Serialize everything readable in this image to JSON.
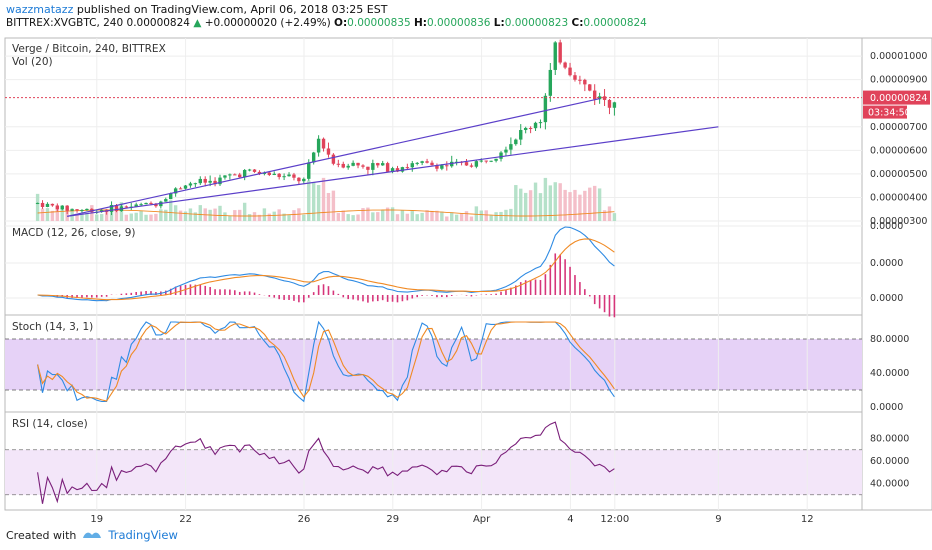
{
  "header": {
    "author": "wazzmatazz",
    "published_text": "published on TradingView.com, April 06, 2018 03:25 EST",
    "symbol": "BITTREX:XVGBTC, 240",
    "last": "0.00000824",
    "change": "+0.00000020 (+2.49%)",
    "o_label": "O:",
    "o": "0.00000835",
    "h_label": "H:",
    "h": "0.00000836",
    "l_label": "L:",
    "l": "0.00000823",
    "c_label": "C:",
    "c": "0.00000824"
  },
  "footer": {
    "created_with": "Created with",
    "brand": "TradingView"
  },
  "colors": {
    "up": "#26a65b",
    "down": "#e0435a",
    "trend": "#5b3fc9",
    "macd": "#2f8be3",
    "signal": "#f08a24",
    "hist": "#d6357a",
    "stoch_band": "#e6d2f7",
    "rsi_band": "#f3e6f9",
    "rsi_line": "#7a1f7a",
    "price_tag": "#e0435a"
  },
  "chart_data": {
    "type": "candlestick",
    "panes": [
      {
        "name": "price",
        "title": "Verge / Bitcoin, 240, BITTREX",
        "subtitle": "Vol (20)",
        "y_ticks": [
          "0.00001000",
          "0.00000900",
          "0.00000700",
          "0.00000600",
          "0.00000500",
          "0.00000400",
          "0.00000300"
        ],
        "ylim": [
          3e-06,
          1.06e-05
        ],
        "last_price": "0.00000824",
        "countdown": "03:34:50",
        "trendlines": [
          {
            "from": [
              "2018-03-18",
              3.2e-06
            ],
            "to": [
              "2018-04-09",
              7e-06
            ]
          },
          {
            "from": [
              "2018-03-18",
              3.2e-06
            ],
            "to": [
              "2018-04-05",
              8.2e-06
            ]
          }
        ],
        "price_path": [
          [
            "2018-03-17",
            3.75
          ],
          [
            "2018-03-18",
            3.5
          ],
          [
            "2018-03-19",
            3.45
          ],
          [
            "2018-03-20",
            3.6
          ],
          [
            "2018-03-21",
            3.75
          ],
          [
            "2018-03-22",
            4.6
          ],
          [
            "2018-03-23",
            4.7
          ],
          [
            "2018-03-24",
            5.1
          ],
          [
            "2018-03-25",
            4.95
          ],
          [
            "2018-03-26",
            4.7
          ],
          [
            "2018-03-26T12",
            6.5
          ],
          [
            "2018-03-27",
            5.5
          ],
          [
            "2018-03-28",
            5.35
          ],
          [
            "2018-03-29",
            5.3
          ],
          [
            "2018-03-30",
            5.4
          ],
          [
            "2018-03-31",
            5.35
          ],
          [
            "2018-04-01",
            5.5
          ],
          [
            "2018-04-02",
            6.4
          ],
          [
            "2018-04-03",
            7.4
          ],
          [
            "2018-04-03T12",
            10.2
          ],
          [
            "2018-04-04",
            9.4
          ],
          [
            "2018-04-04T12",
            8.7
          ],
          [
            "2018-04-05",
            8.2
          ],
          [
            "2018-04-05T12",
            8.24
          ]
        ],
        "volume_bars_scale": "relative"
      },
      {
        "name": "macd",
        "title": "MACD (12, 26, close, 9)",
        "y_ticks": [
          "0.0000",
          "0.0000",
          "0.0000"
        ]
      },
      {
        "name": "stoch",
        "title": "Stoch (14, 3, 1)",
        "y_ticks": [
          "80.0000",
          "40.0000",
          "0.0000"
        ],
        "band": [
          20,
          80
        ]
      },
      {
        "name": "rsi",
        "title": "RSI (14, close)",
        "y_ticks": [
          "80.0000",
          "60.0000",
          "40.0000"
        ],
        "band": [
          30,
          70
        ]
      }
    ],
    "x_ticks": [
      "19",
      "22",
      "26",
      "29",
      "Apr",
      "4",
      "12:00",
      "9",
      "12"
    ]
  }
}
